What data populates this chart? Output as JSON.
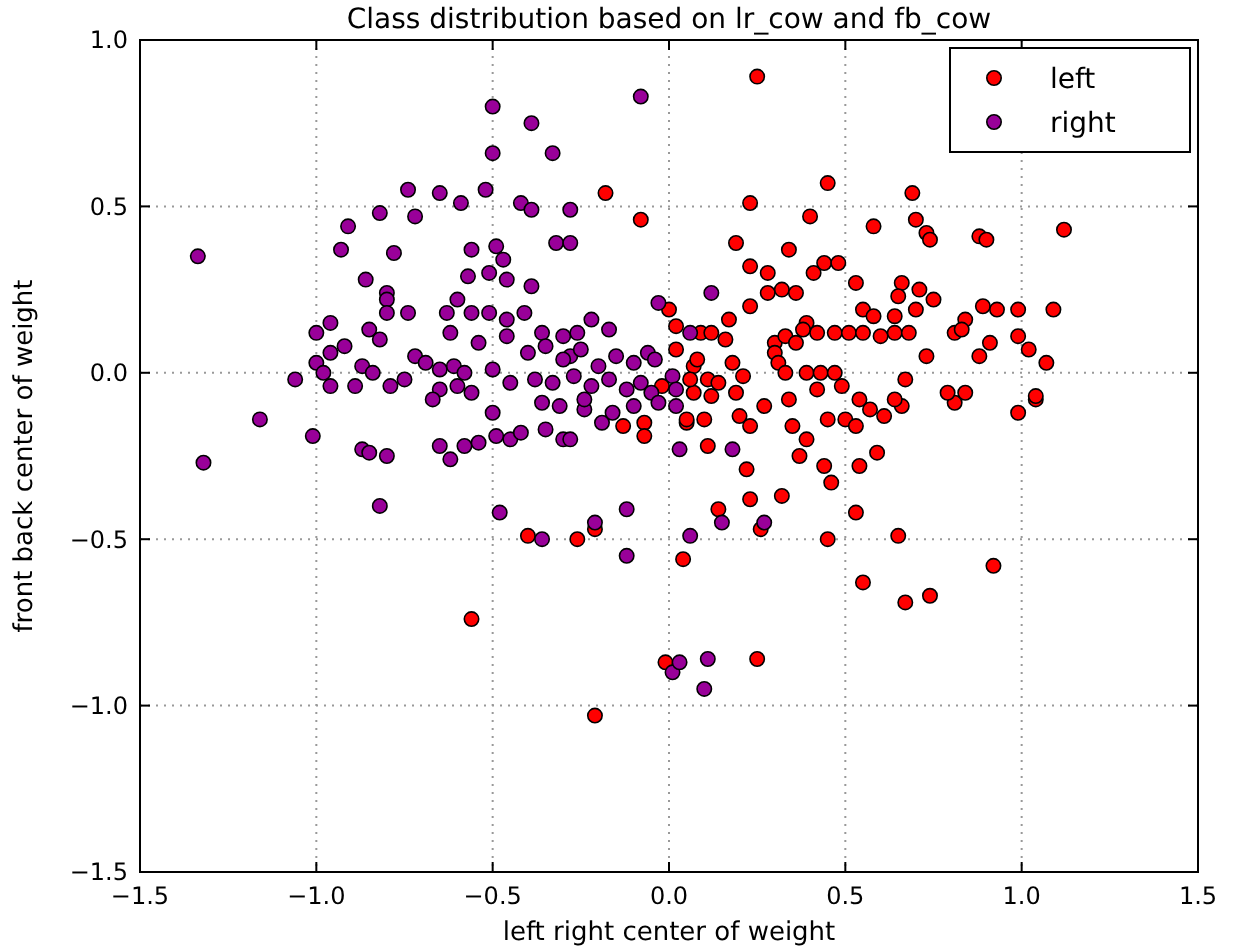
{
  "chart_data": {
    "type": "scatter",
    "title": "Class distribution based on lr_cow and fb_cow",
    "xlabel": "left right center of weight",
    "ylabel": "front back center of weight",
    "xlim": [
      -1.5,
      1.5
    ],
    "ylim": [
      -1.5,
      1.0
    ],
    "xticks": [
      -1.5,
      {
        "value": -1,
        "label": "−1.0"
      },
      -0.5,
      {
        "value": 0,
        "label": "0.0"
      },
      0.5,
      {
        "value": 1,
        "label": "1.0"
      },
      1.5
    ],
    "yticks": [
      -1.5,
      {
        "value": -1,
        "label": "−1.0"
      },
      -0.5,
      {
        "value": 0,
        "label": "0.0"
      },
      0.5,
      {
        "value": 1,
        "label": "1.0"
      }
    ],
    "grid": true,
    "legend": "top right",
    "marker": "circle",
    "series": [
      {
        "name": "left",
        "color": "#ff0000",
        "x": [
          -0.18,
          -0.08,
          -0.4,
          -0.26,
          -0.21,
          -0.56,
          -0.21,
          -0.13,
          -0.07,
          -0.07,
          0.04,
          -0.01,
          0.25,
          0.14,
          0.23,
          0.32,
          0.26,
          0.45,
          0.53,
          0.65,
          0.55,
          0.67,
          0.74,
          0.92,
          0.99,
          1.04,
          0.11,
          0.22,
          0.35,
          0.39,
          0.37,
          0.44,
          0.46,
          0.54,
          0.59,
          0.57,
          0.61,
          0.66,
          0.81,
          0.05,
          0.1,
          0.2,
          0.23,
          0.45,
          0.5,
          0.53,
          0.25,
          0.45,
          0.23,
          0.4,
          0.69,
          0.7,
          0.73,
          0.74,
          0.58,
          0.88,
          0.9,
          1.12,
          0.19,
          0.34,
          0.23,
          0.28,
          0.41,
          0.44,
          0.48,
          0.53,
          0.66,
          0.28,
          0.32,
          0.36,
          0.65,
          0.71,
          0.75,
          0.23,
          0.17,
          0.0,
          0.55,
          0.58,
          0.64,
          0.7,
          0.89,
          0.93,
          0.99,
          1.09,
          0.84,
          0.39,
          0.38,
          0.02,
          0.09,
          0.12,
          0.16,
          0.3,
          0.33,
          0.42,
          0.47,
          0.51,
          0.55,
          0.6,
          0.64,
          0.68,
          0.81,
          0.83,
          0.99,
          0.91,
          0.88,
          1.02,
          1.07,
          0.73,
          0.67,
          0.79,
          0.84,
          1.04,
          0.64,
          0.36,
          0.07,
          0.11,
          0.18,
          0.21,
          0.3,
          0.31,
          0.33,
          0.39,
          0.43,
          0.47,
          0.42,
          0.49,
          0.54,
          0.07,
          0.12,
          0.19,
          0.27,
          0.34,
          0.05,
          0.02,
          0.08,
          0.14,
          -0.02,
          0.06
        ],
        "values": [
          0.54,
          0.46,
          -0.49,
          -0.5,
          -0.47,
          -0.74,
          -1.03,
          -0.16,
          -0.15,
          -0.19,
          -0.56,
          -0.87,
          -0.86,
          -0.41,
          -0.38,
          -0.37,
          -0.47,
          -0.5,
          -0.42,
          -0.49,
          -0.63,
          -0.69,
          -0.67,
          -0.58,
          -0.12,
          -0.08,
          -0.22,
          -0.29,
          -0.16,
          -0.2,
          -0.25,
          -0.28,
          -0.33,
          -0.28,
          -0.24,
          -0.11,
          -0.13,
          -0.1,
          -0.09,
          -0.15,
          -0.14,
          -0.13,
          -0.16,
          -0.14,
          -0.14,
          -0.16,
          0.89,
          0.57,
          0.51,
          0.47,
          0.54,
          0.46,
          0.42,
          0.4,
          0.44,
          0.41,
          0.4,
          0.43,
          0.39,
          0.37,
          0.32,
          0.3,
          0.3,
          0.33,
          0.33,
          0.27,
          0.27,
          0.24,
          0.25,
          0.24,
          0.23,
          0.25,
          0.22,
          0.2,
          0.16,
          0.19,
          0.19,
          0.17,
          0.17,
          0.19,
          0.2,
          0.19,
          0.19,
          0.19,
          0.16,
          0.15,
          0.13,
          0.14,
          0.12,
          0.12,
          0.1,
          0.09,
          0.11,
          0.12,
          0.12,
          0.12,
          0.12,
          0.11,
          0.12,
          0.12,
          0.12,
          0.13,
          0.11,
          0.09,
          0.05,
          0.07,
          0.03,
          0.05,
          -0.02,
          -0.06,
          -0.06,
          -0.07,
          -0.08,
          0.09,
          0.02,
          -0.02,
          0.03,
          -0.01,
          0.06,
          0.03,
          0.0,
          0.0,
          0.0,
          0.0,
          -0.05,
          -0.04,
          -0.08,
          -0.06,
          -0.07,
          -0.06,
          -0.1,
          -0.08,
          -0.14,
          0.07,
          0.04,
          -0.03,
          -0.04,
          -0.02
        ]
      },
      {
        "name": "right",
        "color": "#990099",
        "x": [
          -1.336,
          -0.5,
          -0.08,
          -0.39,
          -0.5,
          -0.33,
          -0.74,
          -0.65,
          -0.59,
          -0.52,
          -0.42,
          -0.39,
          -0.28,
          -0.82,
          -0.72,
          -0.91,
          -0.32,
          -0.28,
          -0.93,
          -0.78,
          -0.56,
          -0.49,
          -0.47,
          -0.86,
          -0.57,
          -0.51,
          -0.46,
          -0.39,
          -0.8,
          -0.8,
          -0.74,
          -0.8,
          -0.6,
          -0.63,
          -0.56,
          -0.51,
          -0.46,
          -0.41,
          -0.96,
          -1.0,
          -0.85,
          -0.82,
          -0.92,
          -0.96,
          -1.0,
          -0.62,
          -0.54,
          -0.46,
          -0.36,
          -0.3,
          -0.26,
          -0.22,
          -0.17,
          -0.28,
          -0.72,
          -0.69,
          -0.98,
          -0.96,
          -1.06,
          -0.89,
          -0.87,
          -0.84,
          -0.79,
          -0.75,
          -0.65,
          -0.61,
          -0.58,
          -0.65,
          -0.6,
          -0.56,
          -0.67,
          -0.5,
          -0.45,
          -0.5,
          -1.16,
          -1.32,
          -1.01,
          -0.87,
          -0.85,
          -0.8,
          -0.82,
          -0.65,
          -0.62,
          -0.58,
          -0.54,
          -0.49,
          -0.45,
          -0.42,
          -0.35,
          -0.3,
          -0.28,
          -0.48,
          -0.36,
          -0.21,
          -0.12,
          -0.12,
          -0.19,
          -0.24,
          -0.4,
          -0.35,
          -0.3,
          -0.25,
          -0.2,
          -0.15,
          -0.1,
          -0.06,
          -0.38,
          -0.33,
          -0.27,
          -0.22,
          -0.17,
          -0.12,
          -0.08,
          -0.36,
          -0.31,
          -0.24,
          -0.16,
          -0.1,
          0.03,
          0.18,
          0.15,
          0.27,
          0.06,
          0.01,
          0.03,
          0.11,
          0.1,
          0.12,
          -0.03,
          0.06,
          -0.04,
          0.01,
          0.02,
          -0.05,
          -0.03,
          0.02
        ],
        "values": [
          0.35,
          0.8,
          0.83,
          0.75,
          0.66,
          0.66,
          0.55,
          0.54,
          0.51,
          0.55,
          0.51,
          0.49,
          0.49,
          0.48,
          0.47,
          0.44,
          0.39,
          0.39,
          0.37,
          0.36,
          0.37,
          0.38,
          0.34,
          0.28,
          0.29,
          0.3,
          0.28,
          0.26,
          0.24,
          0.22,
          0.18,
          0.18,
          0.22,
          0.18,
          0.18,
          0.18,
          0.16,
          0.18,
          0.15,
          0.12,
          0.13,
          0.1,
          0.08,
          0.06,
          0.03,
          0.12,
          0.09,
          0.11,
          0.12,
          0.11,
          0.12,
          0.16,
          0.13,
          0.05,
          0.05,
          0.03,
          0.0,
          -0.04,
          -0.02,
          -0.04,
          0.02,
          0.0,
          -0.04,
          -0.02,
          0.01,
          0.02,
          0.0,
          -0.05,
          -0.04,
          -0.06,
          -0.08,
          0.01,
          -0.03,
          -0.12,
          -0.14,
          -0.27,
          -0.19,
          -0.23,
          -0.24,
          -0.25,
          -0.4,
          -0.22,
          -0.26,
          -0.22,
          -0.21,
          -0.19,
          -0.2,
          -0.18,
          -0.17,
          -0.2,
          -0.2,
          -0.42,
          -0.5,
          -0.45,
          -0.41,
          -0.55,
          -0.15,
          -0.11,
          0.06,
          0.08,
          0.04,
          0.07,
          0.02,
          0.05,
          0.03,
          0.06,
          -0.02,
          -0.03,
          -0.01,
          -0.04,
          -0.02,
          -0.05,
          -0.03,
          -0.09,
          -0.1,
          -0.08,
          -0.12,
          -0.1,
          -0.23,
          -0.23,
          -0.45,
          -0.45,
          -0.49,
          -0.9,
          -0.87,
          -0.86,
          -0.95,
          0.24,
          0.21,
          0.12,
          0.04,
          -0.01,
          -0.05,
          -0.06,
          -0.09,
          -0.1
        ]
      }
    ]
  }
}
